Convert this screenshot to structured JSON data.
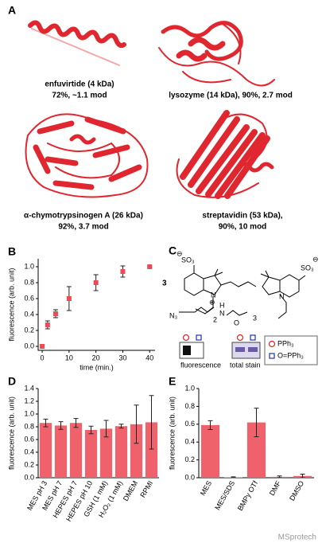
{
  "panel_a": {
    "label": "A",
    "proteins": [
      {
        "name": "enfuvirtide (4 kDa)",
        "stats": "72%, ~1.1 mod"
      },
      {
        "name": "lysozyme (14 kDa), 90%, 2.7 mod"
      },
      {
        "name": "α-chymotrypsinogen A (26 kDa)",
        "stats": "92%, 3.7 mod"
      },
      {
        "name": "streptavidin (53 kDa),",
        "stats": "90%, 10 mod"
      }
    ]
  },
  "panel_c": {
    "label": "C",
    "compound": "3",
    "atoms": [
      "SO₃",
      "SO₃",
      "N₃",
      "N",
      "H",
      "O",
      "N",
      "N",
      "2",
      "3",
      "⊖",
      "⊖",
      "⊕"
    ],
    "gel_labels": [
      "fluorescence",
      "total stain"
    ],
    "legend": [
      "PPh₃",
      "O=PPh₃"
    ]
  },
  "chart_data": [
    {
      "type": "scatter",
      "panel": "B",
      "x_label": "time (min.)",
      "y_label": "fluorescence (arb. unit)",
      "color": "#ee4a55",
      "x": [
        0,
        2,
        5,
        10,
        20,
        30,
        40
      ],
      "values": [
        0,
        0.27,
        0.41,
        0.6,
        0.8,
        0.94,
        1.0
      ],
      "errors": [
        0.02,
        0.05,
        0.05,
        0.15,
        0.1,
        0.07,
        0
      ],
      "xlim": [
        -1.5,
        42
      ],
      "xticks": [
        0,
        10,
        20,
        30,
        40
      ],
      "ylim": [
        -0.05,
        1.1
      ],
      "yticks": [
        {
          "value": 0,
          "label": "0.0"
        },
        0.2,
        0.4,
        0.6,
        0.8,
        {
          "value": 1,
          "label": "1.0"
        }
      ]
    },
    {
      "type": "bar",
      "panel": "D",
      "y_label": "fluorescence (arb. unit)",
      "color": "#f0626b",
      "categories": [
        "MES pH 3",
        "MES pH 7",
        "HEPES pH 7",
        "HEPES pH 10",
        "GSH (1 mM)",
        "H₂O₂ (1 mM)",
        "DMEM",
        "RPMI"
      ],
      "values": [
        0.86,
        0.82,
        0.86,
        0.75,
        0.77,
        0.81,
        0.84,
        0.87
      ],
      "errors": [
        0.06,
        0.06,
        0.07,
        0.06,
        0.13,
        0.03,
        0.3,
        0.42
      ],
      "ylim": [
        0,
        1.4
      ],
      "yticks": [
        {
          "value": 0,
          "label": "0.0"
        },
        0.2,
        0.4,
        0.6,
        0.8,
        {
          "value": 1,
          "label": "1.0"
        },
        1.2,
        1.4
      ]
    },
    {
      "type": "bar",
      "panel": "E",
      "y_label": "fluorescence (arb. unit)",
      "color": "#f0626b",
      "categories": [
        "MES",
        "MES/SDS",
        "BMPy OTf",
        "DMF",
        "DMSO"
      ],
      "values": [
        0.59,
        0.005,
        0.62,
        0.01,
        0.02
      ],
      "errors": [
        0.05,
        0.005,
        0.16,
        0.01,
        0.02
      ],
      "ylim": [
        0,
        1.0
      ],
      "yticks": [
        {
          "value": 0,
          "label": "0.0"
        },
        0.2,
        0.4,
        0.6,
        0.8,
        {
          "value": 1,
          "label": "1.0"
        }
      ]
    }
  ],
  "watermark": "MSprotech"
}
